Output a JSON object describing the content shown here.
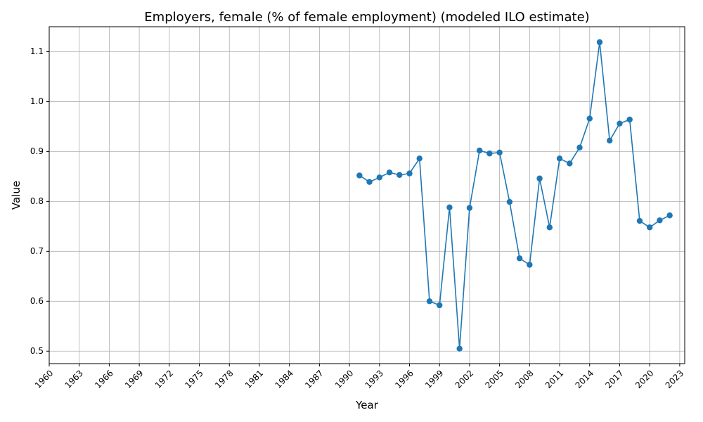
{
  "chart_data": {
    "type": "line",
    "title": "Employers, female (% of female employment) (modeled ILO estimate)",
    "xlabel": "Year",
    "ylabel": "Value",
    "xlim": [
      1960,
      2023.5
    ],
    "ylim": [
      0.475,
      1.15
    ],
    "grid": true,
    "legend": "none",
    "x_ticks": [
      1960,
      1963,
      1966,
      1969,
      1972,
      1975,
      1978,
      1981,
      1984,
      1987,
      1990,
      1993,
      1996,
      1999,
      2002,
      2005,
      2008,
      2011,
      2014,
      2017,
      2020,
      2023
    ],
    "y_ticks": [
      0.5,
      0.6,
      0.7,
      0.8,
      0.9,
      1.0,
      1.1
    ],
    "y_tick_labels": [
      "0.5",
      "0.6",
      "0.7",
      "0.8",
      "0.9",
      "1.0",
      "1.1"
    ],
    "series": [
      {
        "color": "#1f77b4",
        "x": [
          1991,
          1992,
          1993,
          1994,
          1995,
          1996,
          1997,
          1998,
          1999,
          2000,
          2001,
          2002,
          2003,
          2004,
          2005,
          2006,
          2007,
          2008,
          2009,
          2010,
          2011,
          2012,
          2013,
          2014,
          2015,
          2016,
          2017,
          2018,
          2019,
          2020,
          2021,
          2022
        ],
        "values": [
          0.852,
          0.839,
          0.848,
          0.858,
          0.853,
          0.856,
          0.886,
          0.6,
          0.592,
          0.788,
          0.505,
          0.787,
          0.902,
          0.896,
          0.898,
          0.799,
          0.686,
          0.673,
          0.846,
          0.748,
          0.886,
          0.876,
          0.908,
          0.966,
          1.119,
          0.922,
          0.956,
          0.964,
          0.761,
          0.748,
          0.762,
          0.772
        ]
      }
    ]
  }
}
